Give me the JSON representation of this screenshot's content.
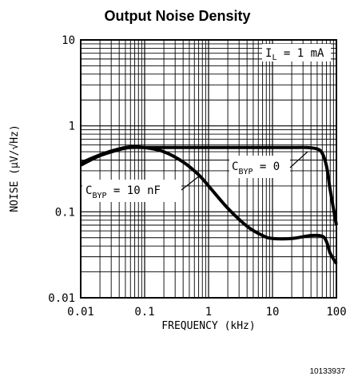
{
  "chart_data": {
    "type": "line",
    "title": "Output Noise Density",
    "xlabel": "FREQUENCY (kHz)",
    "ylabel": "NOISE (µV/√Hz)",
    "x_scale": "log",
    "y_scale": "log",
    "xlim": [
      0.01,
      100
    ],
    "ylim": [
      0.01,
      10
    ],
    "grid": true,
    "x_ticks": [
      "0.01",
      "0.1",
      "1",
      "10",
      "100"
    ],
    "y_ticks": [
      "10",
      "1",
      "0.1",
      "0.01"
    ],
    "condition": {
      "main": "I",
      "sub": "L",
      "rest": " = 1 mA"
    },
    "series": [
      {
        "label": {
          "main": "C",
          "sub": "BYP",
          "rest": " = 0"
        },
        "x": [
          0.01,
          0.02,
          0.04,
          0.06,
          0.1,
          0.3,
          1,
          3,
          10,
          20,
          35,
          50,
          60,
          70,
          80,
          100
        ],
        "y": [
          0.35,
          0.45,
          0.53,
          0.56,
          0.56,
          0.56,
          0.56,
          0.56,
          0.56,
          0.56,
          0.56,
          0.54,
          0.48,
          0.34,
          0.18,
          0.07
        ]
      },
      {
        "label": {
          "main": "C",
          "sub": "BYP",
          "rest": " = 10 nF"
        },
        "x": [
          0.01,
          0.02,
          0.04,
          0.06,
          0.1,
          0.2,
          0.4,
          0.7,
          1,
          2,
          4,
          7,
          10,
          20,
          40,
          60,
          70,
          80,
          100
        ],
        "y": [
          0.37,
          0.46,
          0.54,
          0.57,
          0.56,
          0.5,
          0.38,
          0.27,
          0.2,
          0.11,
          0.068,
          0.053,
          0.049,
          0.049,
          0.053,
          0.052,
          0.045,
          0.033,
          0.025
        ]
      }
    ]
  },
  "figure_code": "10133937"
}
